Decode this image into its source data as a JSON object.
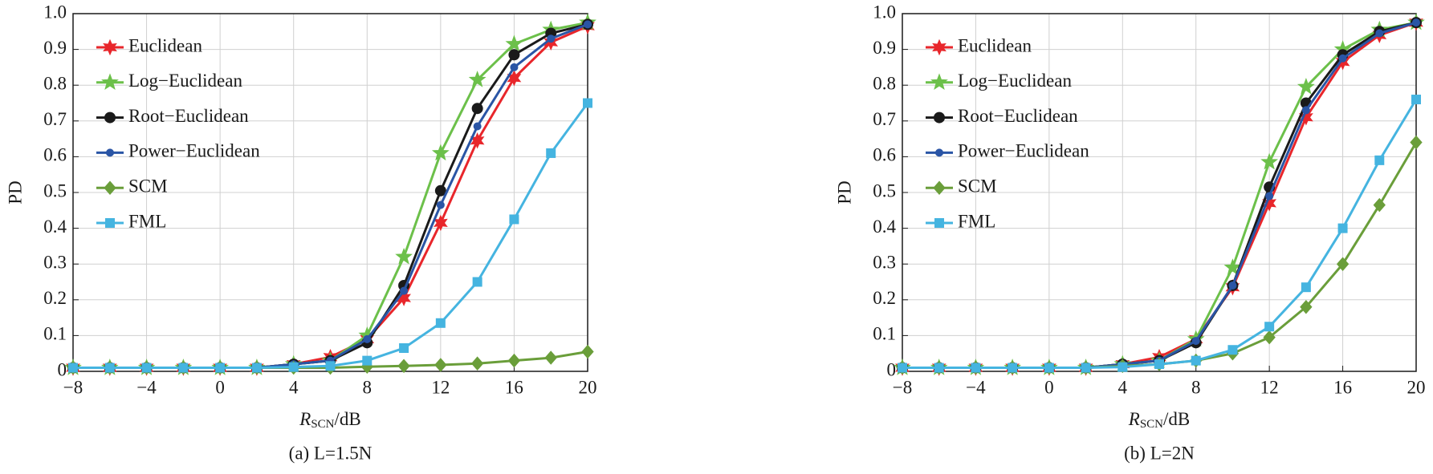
{
  "chart_data": [
    {
      "type": "line",
      "y_label": "PD",
      "x_label": {
        "symbol": "R",
        "subscript": "SCN",
        "unit": "/dB"
      },
      "caption": "(a) L=1.5N",
      "x": [
        -8,
        -6,
        -4,
        -2,
        0,
        2,
        4,
        6,
        8,
        10,
        12,
        14,
        16,
        18,
        20
      ],
      "xlim": [
        -8,
        20
      ],
      "xticks": [
        {
          "value": -8,
          "label": "−8"
        },
        {
          "value": -4,
          "label": "−4"
        },
        0,
        4,
        8,
        12,
        16,
        20
      ],
      "ylim": [
        0,
        1
      ],
      "yticks": [
        0,
        0.1,
        0.2,
        0.3,
        0.4,
        0.5,
        0.6,
        0.7,
        0.8,
        0.9,
        {
          "value": 1,
          "label": "1.0"
        }
      ],
      "grid": true,
      "legend": "upper left",
      "series": [
        {
          "name": "Euclidean",
          "color": "#e8262b",
          "marker": "star6",
          "values": [
            0.01,
            0.01,
            0.01,
            0.01,
            0.01,
            0.01,
            0.02,
            0.04,
            0.09,
            0.205,
            0.415,
            0.645,
            0.82,
            0.92,
            0.965
          ]
        },
        {
          "name": "Log−Euclidean",
          "color": "#6cc04a",
          "marker": "star5",
          "values": [
            0.01,
            0.01,
            0.01,
            0.01,
            0.01,
            0.01,
            0.02,
            0.03,
            0.1,
            0.32,
            0.61,
            0.815,
            0.915,
            0.955,
            0.975
          ]
        },
        {
          "name": "Root−Euclidean",
          "color": "#1a1a1a",
          "marker": "circle",
          "values": [
            0.01,
            0.01,
            0.01,
            0.01,
            0.01,
            0.01,
            0.02,
            0.03,
            0.08,
            0.24,
            0.505,
            0.735,
            0.885,
            0.945,
            0.97
          ]
        },
        {
          "name": "Power−Euclidean",
          "color": "#2a55a5",
          "marker": "dot",
          "values": [
            0.01,
            0.01,
            0.01,
            0.01,
            0.01,
            0.01,
            0.02,
            0.03,
            0.09,
            0.225,
            0.465,
            0.685,
            0.85,
            0.93,
            0.97
          ]
        },
        {
          "name": "SCM",
          "color": "#6a9e3a",
          "marker": "diamond",
          "values": [
            0.01,
            0.01,
            0.01,
            0.01,
            0.01,
            0.01,
            0.01,
            0.01,
            0.013,
            0.015,
            0.018,
            0.022,
            0.03,
            0.038,
            0.055
          ]
        },
        {
          "name": "FML",
          "color": "#45b4e0",
          "marker": "square",
          "values": [
            0.01,
            0.01,
            0.01,
            0.01,
            0.01,
            0.01,
            0.012,
            0.015,
            0.03,
            0.065,
            0.135,
            0.25,
            0.425,
            0.61,
            0.75
          ]
        }
      ]
    },
    {
      "type": "line",
      "y_label": "PD",
      "x_label": {
        "symbol": "R",
        "subscript": "SCN",
        "unit": "/dB"
      },
      "caption": "(b) L=2N",
      "x": [
        -8,
        -6,
        -4,
        -2,
        0,
        2,
        4,
        6,
        8,
        10,
        12,
        14,
        16,
        18,
        20
      ],
      "xlim": [
        -8,
        20
      ],
      "xticks": [
        {
          "value": -8,
          "label": "−8"
        },
        {
          "value": -4,
          "label": "−4"
        },
        0,
        4,
        8,
        12,
        16,
        20
      ],
      "ylim": [
        0,
        1
      ],
      "yticks": [
        0,
        0.1,
        0.2,
        0.3,
        0.4,
        0.5,
        0.6,
        0.7,
        0.8,
        0.9,
        {
          "value": 1,
          "label": "1.0"
        }
      ],
      "grid": true,
      "legend": "upper left",
      "series": [
        {
          "name": "Euclidean",
          "color": "#e8262b",
          "marker": "star6",
          "values": [
            0.01,
            0.01,
            0.01,
            0.01,
            0.01,
            0.01,
            0.02,
            0.04,
            0.09,
            0.235,
            0.47,
            0.71,
            0.865,
            0.94,
            0.975
          ]
        },
        {
          "name": "Log−Euclidean",
          "color": "#6cc04a",
          "marker": "star5",
          "values": [
            0.01,
            0.01,
            0.01,
            0.01,
            0.01,
            0.01,
            0.02,
            0.03,
            0.09,
            0.29,
            0.585,
            0.795,
            0.9,
            0.955,
            0.975
          ]
        },
        {
          "name": "Root−Euclidean",
          "color": "#1a1a1a",
          "marker": "circle",
          "values": [
            0.01,
            0.01,
            0.01,
            0.01,
            0.01,
            0.01,
            0.02,
            0.03,
            0.08,
            0.24,
            0.515,
            0.75,
            0.885,
            0.95,
            0.975
          ]
        },
        {
          "name": "Power−Euclidean",
          "color": "#2a55a5",
          "marker": "dot",
          "values": [
            0.01,
            0.01,
            0.01,
            0.01,
            0.01,
            0.01,
            0.02,
            0.03,
            0.085,
            0.24,
            0.49,
            0.73,
            0.875,
            0.945,
            0.975
          ]
        },
        {
          "name": "SCM",
          "color": "#6a9e3a",
          "marker": "diamond",
          "values": [
            0.01,
            0.01,
            0.01,
            0.01,
            0.01,
            0.01,
            0.015,
            0.02,
            0.03,
            0.05,
            0.095,
            0.18,
            0.3,
            0.465,
            0.64
          ]
        },
        {
          "name": "FML",
          "color": "#45b4e0",
          "marker": "square",
          "values": [
            0.01,
            0.01,
            0.01,
            0.01,
            0.01,
            0.01,
            0.012,
            0.02,
            0.03,
            0.06,
            0.125,
            0.235,
            0.4,
            0.59,
            0.76
          ]
        }
      ]
    }
  ]
}
